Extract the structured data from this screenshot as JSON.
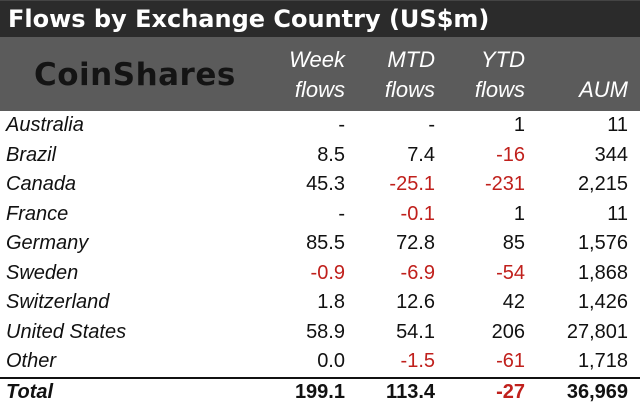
{
  "title": "Flows by Exchange Country (US$m)",
  "logo_text": "CoinShares",
  "columns": {
    "week": [
      "Week",
      "flows"
    ],
    "mtd": [
      "MTD",
      "flows"
    ],
    "ytd": [
      "YTD",
      "flows"
    ],
    "aum": [
      "",
      "AUM"
    ]
  },
  "rows": [
    {
      "name": "Australia",
      "week": "-",
      "mtd": "-",
      "ytd": "1",
      "aum": "11"
    },
    {
      "name": "Brazil",
      "week": "8.5",
      "mtd": "7.4",
      "ytd": "-16",
      "aum": "344"
    },
    {
      "name": "Canada",
      "week": "45.3",
      "mtd": "-25.1",
      "ytd": "-231",
      "aum": "2,215"
    },
    {
      "name": "France",
      "week": "-",
      "mtd": "-0.1",
      "ytd": "1",
      "aum": "11"
    },
    {
      "name": "Germany",
      "week": "85.5",
      "mtd": "72.8",
      "ytd": "85",
      "aum": "1,576"
    },
    {
      "name": "Sweden",
      "week": "-0.9",
      "mtd": "-6.9",
      "ytd": "-54",
      "aum": "1,868"
    },
    {
      "name": "Switzerland",
      "week": "1.8",
      "mtd": "12.6",
      "ytd": "42",
      "aum": "1,426"
    },
    {
      "name": "United States",
      "week": "58.9",
      "mtd": "54.1",
      "ytd": "206",
      "aum": "27,801"
    },
    {
      "name": "Other",
      "week": "0.0",
      "mtd": "-1.5",
      "ytd": "-61",
      "aum": "1,718"
    }
  ],
  "total": {
    "name": "Total",
    "week": "199.1",
    "mtd": "113.4",
    "ytd": "-27",
    "aum": "36,969"
  },
  "colors": {
    "negative": "#c0201c",
    "header_dark": "#2b2b2b",
    "header_mid": "#5b5b5b"
  }
}
